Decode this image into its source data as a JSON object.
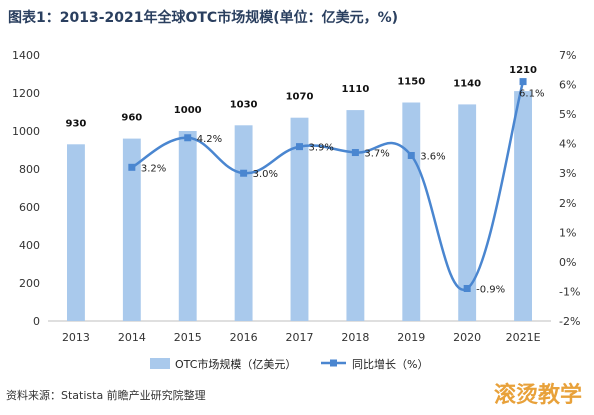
{
  "chart_data": {
    "type": "bar+line",
    "title": "图表1：2013-2021年全球OTC市场规模(单位：亿美元，%)",
    "categories": [
      "2013",
      "2014",
      "2015",
      "2016",
      "2017",
      "2018",
      "2019",
      "2020",
      "2021E"
    ],
    "series": [
      {
        "name": "OTC市场规模（亿美元）",
        "type": "bar",
        "axis": "left",
        "values": [
          930,
          960,
          1000,
          1030,
          1070,
          1110,
          1150,
          1140,
          1210
        ],
        "labels": [
          "930",
          "960",
          "1000",
          "1030",
          "1070",
          "1110",
          "1150",
          "1140",
          "1210"
        ],
        "color": "#a9c9ec"
      },
      {
        "name": "同比增长（%）",
        "type": "line",
        "axis": "right",
        "x": [
          "2014",
          "2015",
          "2016",
          "2017",
          "2018",
          "2019",
          "2020",
          "2021E"
        ],
        "values": [
          3.2,
          4.2,
          3.0,
          3.9,
          3.7,
          3.6,
          -0.9,
          6.1
        ],
        "labels": [
          "3.2%",
          "4.2%",
          "3.0%",
          "3.9%",
          "3.7%",
          "3.6%",
          "-0.9%",
          "6.1%"
        ],
        "color": "#4a86d0"
      }
    ],
    "y_left": {
      "ylim": [
        0,
        1400
      ],
      "ticks": [
        "0",
        "200",
        "400",
        "600",
        "800",
        "1000",
        "1200",
        "1400"
      ]
    },
    "y_right": {
      "ylim": [
        -2,
        7
      ],
      "ticks": [
        "-2%",
        "-1%",
        "0%",
        "1%",
        "2%",
        "3%",
        "4%",
        "5%",
        "6%",
        "7%"
      ]
    },
    "grid": false,
    "legend_position": "bottom"
  },
  "source": "资料来源：Statista 前瞻产业研究院整理",
  "watermark": "滚烫教学"
}
